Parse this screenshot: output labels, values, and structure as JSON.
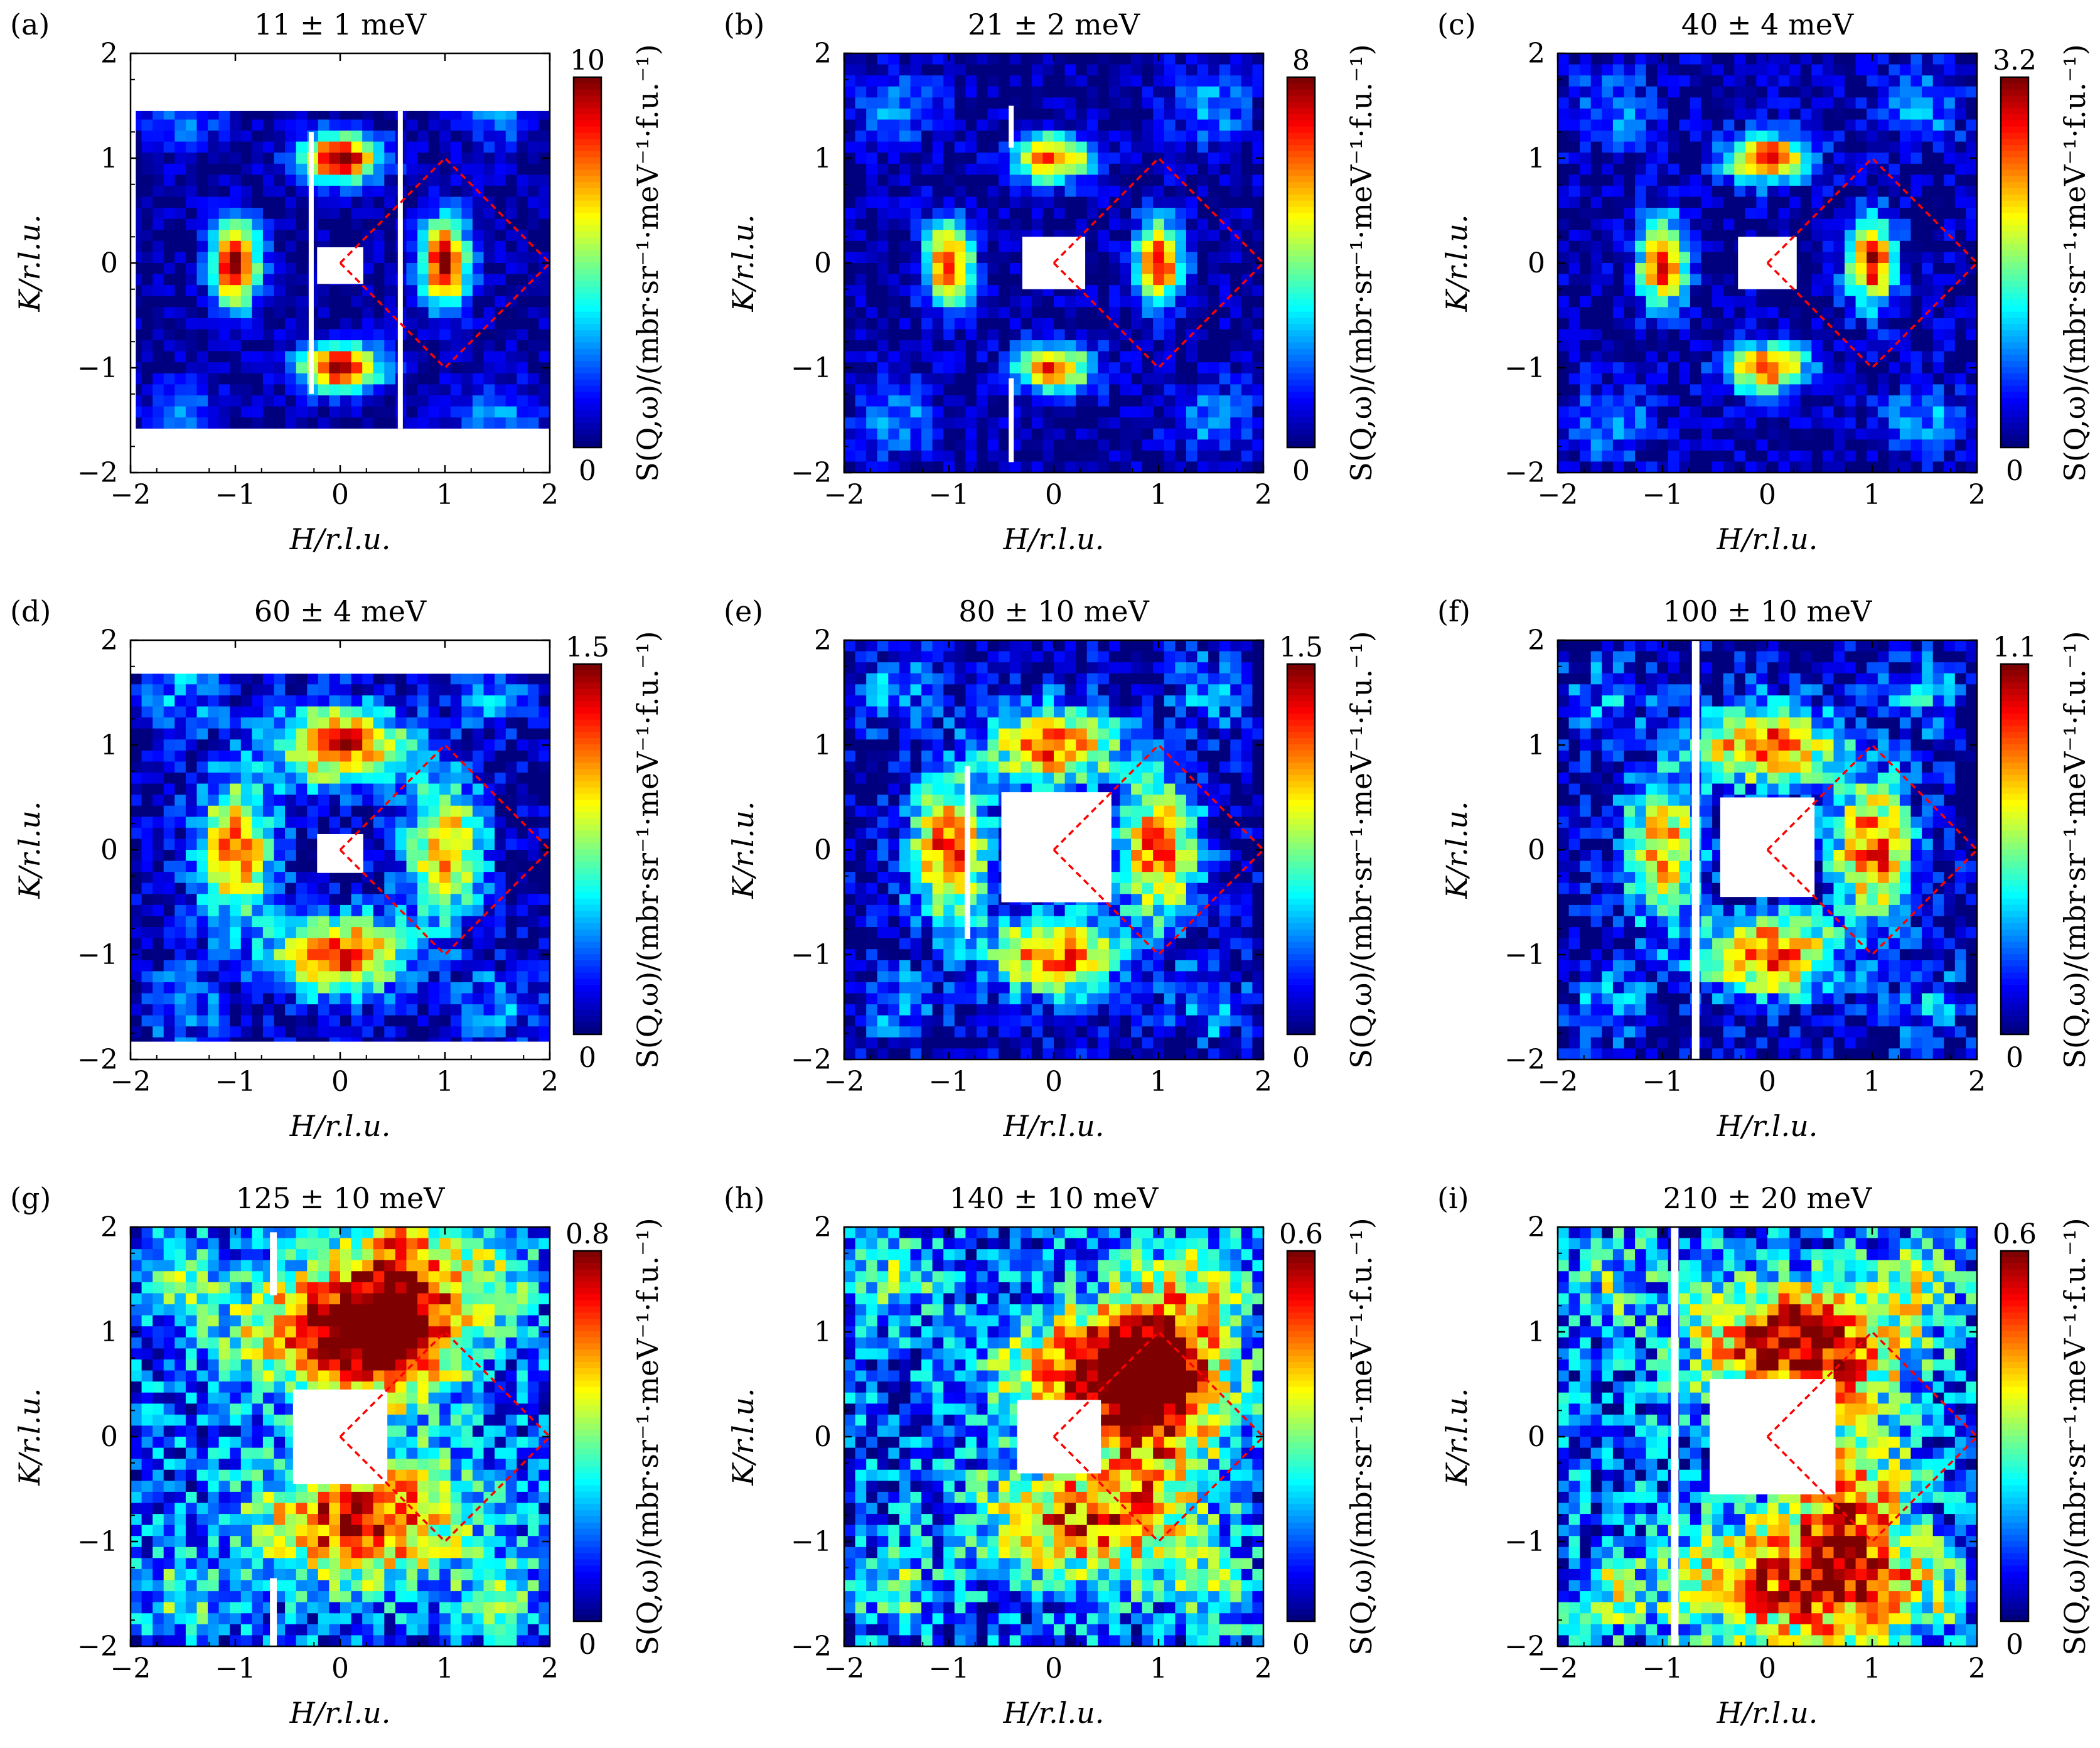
{
  "colorbar_label": "S(Q,ω)/(mbr·sr⁻¹·meV⁻¹·f.u.⁻¹)",
  "colormap": [
    "#00007f",
    "#0000ff",
    "#007fff",
    "#00ffff",
    "#7fff7f",
    "#ffff00",
    "#ff7f00",
    "#ff0000",
    "#7f0000"
  ],
  "zone_boundary_color": "#ff0000",
  "chart_data": [
    {
      "type": "heatmap",
      "panel": "(a)",
      "title": "11 ± 1 meV",
      "xlabel": "H/r.l.u.",
      "ylabel": "K/r.l.u.",
      "xlim": [
        -2,
        2
      ],
      "ylim": [
        -2,
        2
      ],
      "xticks": [
        "−2",
        "−1",
        "0",
        "1",
        "2"
      ],
      "yticks": [
        "−2",
        "−1",
        "0",
        "1",
        "2"
      ],
      "colorbar": {
        "min": "0",
        "max": "10"
      },
      "peaks": [
        {
          "h": -1,
          "k": 0,
          "intensity": 1.0
        },
        {
          "h": 1,
          "k": 0,
          "intensity": 1.0
        },
        {
          "h": 0,
          "k": 1,
          "intensity": 1.0
        },
        {
          "h": 0,
          "k": -1,
          "intensity": 1.0
        }
      ]
    },
    {
      "type": "heatmap",
      "panel": "(b)",
      "title": "21 ± 2 meV",
      "xlabel": "H/r.l.u.",
      "ylabel": "K/r.l.u.",
      "xlim": [
        -2,
        2
      ],
      "ylim": [
        -2,
        2
      ],
      "xticks": [
        "−2",
        "−1",
        "0",
        "1",
        "2"
      ],
      "yticks": [
        "−2",
        "−1",
        "0",
        "1",
        "2"
      ],
      "colorbar": {
        "min": "0",
        "max": "8"
      },
      "peaks": [
        {
          "h": -1,
          "k": 0,
          "intensity": 0.85
        },
        {
          "h": 1,
          "k": 0,
          "intensity": 0.85
        },
        {
          "h": 0,
          "k": 1,
          "intensity": 0.8
        },
        {
          "h": 0,
          "k": -1,
          "intensity": 0.8
        }
      ]
    },
    {
      "type": "heatmap",
      "panel": "(c)",
      "title": "40 ± 4 meV",
      "xlabel": "H/r.l.u.",
      "ylabel": "K/r.l.u.",
      "xlim": [
        -2,
        2
      ],
      "ylim": [
        -2,
        2
      ],
      "xticks": [
        "−2",
        "−1",
        "0",
        "1",
        "2"
      ],
      "yticks": [
        "−2",
        "−1",
        "0",
        "1",
        "2"
      ],
      "colorbar": {
        "min": "0",
        "max": "3.2"
      },
      "peaks": [
        {
          "h": -1,
          "k": 0,
          "intensity": 0.9
        },
        {
          "h": 1,
          "k": 0,
          "intensity": 0.9
        },
        {
          "h": 0,
          "k": 1,
          "intensity": 0.9
        },
        {
          "h": 0,
          "k": -1,
          "intensity": 0.85
        }
      ]
    },
    {
      "type": "heatmap",
      "panel": "(d)",
      "title": "60 ± 4 meV",
      "xlabel": "H/r.l.u.",
      "ylabel": "K/r.l.u.",
      "xlim": [
        -2,
        2
      ],
      "ylim": [
        -2,
        2
      ],
      "xticks": [
        "−2",
        "−1",
        "0",
        "1",
        "2"
      ],
      "yticks": [
        "−2",
        "−1",
        "0",
        "1",
        "2"
      ],
      "colorbar": {
        "min": "0",
        "max": "1.5"
      },
      "peaks": [
        {
          "h": -1,
          "k": 0,
          "intensity": 0.75
        },
        {
          "h": 1,
          "k": 0,
          "intensity": 0.7
        },
        {
          "h": 0,
          "k": 1,
          "intensity": 0.85
        },
        {
          "h": 0,
          "k": -1,
          "intensity": 0.85
        }
      ]
    },
    {
      "type": "heatmap",
      "panel": "(e)",
      "title": "80 ± 10 meV",
      "xlabel": "H/r.l.u.",
      "ylabel": "K/r.l.u.",
      "xlim": [
        -2,
        2
      ],
      "ylim": [
        -2,
        2
      ],
      "xticks": [
        "−2",
        "−1",
        "0",
        "1",
        "2"
      ],
      "yticks": [
        "−2",
        "−1",
        "0",
        "1",
        "2"
      ],
      "colorbar": {
        "min": "0",
        "max": "1.5"
      },
      "peaks": [
        {
          "h": -1,
          "k": 0,
          "intensity": 0.8
        },
        {
          "h": 1,
          "k": 0,
          "intensity": 0.8
        },
        {
          "h": 0,
          "k": 1,
          "intensity": 0.8
        },
        {
          "h": 0,
          "k": -1,
          "intensity": 0.8
        }
      ]
    },
    {
      "type": "heatmap",
      "panel": "(f)",
      "title": "100 ± 10 meV",
      "xlabel": "H/r.l.u.",
      "ylabel": "K/r.l.u.",
      "xlim": [
        -2,
        2
      ],
      "ylim": [
        -2,
        2
      ],
      "xticks": [
        "−2",
        "−1",
        "0",
        "1",
        "2"
      ],
      "yticks": [
        "−2",
        "−1",
        "0",
        "1",
        "2"
      ],
      "colorbar": {
        "min": "0",
        "max": "1.1"
      },
      "peaks": [
        {
          "h": -1,
          "k": 0,
          "intensity": 0.7
        },
        {
          "h": 1,
          "k": 0,
          "intensity": 0.8
        },
        {
          "h": 0,
          "k": 1,
          "intensity": 0.85
        },
        {
          "h": 0,
          "k": -1,
          "intensity": 0.85
        }
      ]
    },
    {
      "type": "heatmap",
      "panel": "(g)",
      "title": "125 ± 10 meV",
      "xlabel": "H/r.l.u.",
      "ylabel": "K/r.l.u.",
      "xlim": [
        -2,
        2
      ],
      "ylim": [
        -2,
        2
      ],
      "xticks": [
        "−2",
        "−1",
        "0",
        "1",
        "2"
      ],
      "yticks": [
        "−2",
        "−1",
        "0",
        "1",
        "2"
      ],
      "colorbar": {
        "min": "0",
        "max": "0.8"
      },
      "peaks": [
        {
          "h": 0,
          "k": 1,
          "intensity": 0.8
        },
        {
          "h": 0.2,
          "k": -0.8,
          "intensity": 0.75
        },
        {
          "h": 0.6,
          "k": 1.4,
          "intensity": 0.6
        }
      ]
    },
    {
      "type": "heatmap",
      "panel": "(h)",
      "title": "140 ± 10 meV",
      "xlabel": "H/r.l.u.",
      "ylabel": "K/r.l.u.",
      "xlim": [
        -2,
        2
      ],
      "ylim": [
        -2,
        2
      ],
      "xticks": [
        "−2",
        "−1",
        "0",
        "1",
        "2"
      ],
      "yticks": [
        "−2",
        "−1",
        "0",
        "1",
        "2"
      ],
      "colorbar": {
        "min": "0",
        "max": "0.6"
      },
      "peaks": [
        {
          "h": 0.5,
          "k": 0.6,
          "intensity": 0.8
        },
        {
          "h": 0.3,
          "k": -0.8,
          "intensity": 0.6
        },
        {
          "h": 1,
          "k": 0.5,
          "intensity": 0.6
        }
      ]
    },
    {
      "type": "heatmap",
      "panel": "(i)",
      "title": "210 ± 20 meV",
      "xlabel": "H/r.l.u.",
      "ylabel": "K/r.l.u.",
      "xlim": [
        -2,
        2
      ],
      "ylim": [
        -2,
        2
      ],
      "xticks": [
        "−2",
        "−1",
        "0",
        "1",
        "2"
      ],
      "yticks": [
        "−2",
        "−1",
        "0",
        "1",
        "2"
      ],
      "colorbar": {
        "min": "0",
        "max": "0.6"
      },
      "peaks": [
        {
          "h": 0.3,
          "k": 0.9,
          "intensity": 0.85
        },
        {
          "h": 0.8,
          "k": -0.9,
          "intensity": 0.65
        },
        {
          "h": 0,
          "k": -1.4,
          "intensity": 0.55
        }
      ]
    }
  ]
}
